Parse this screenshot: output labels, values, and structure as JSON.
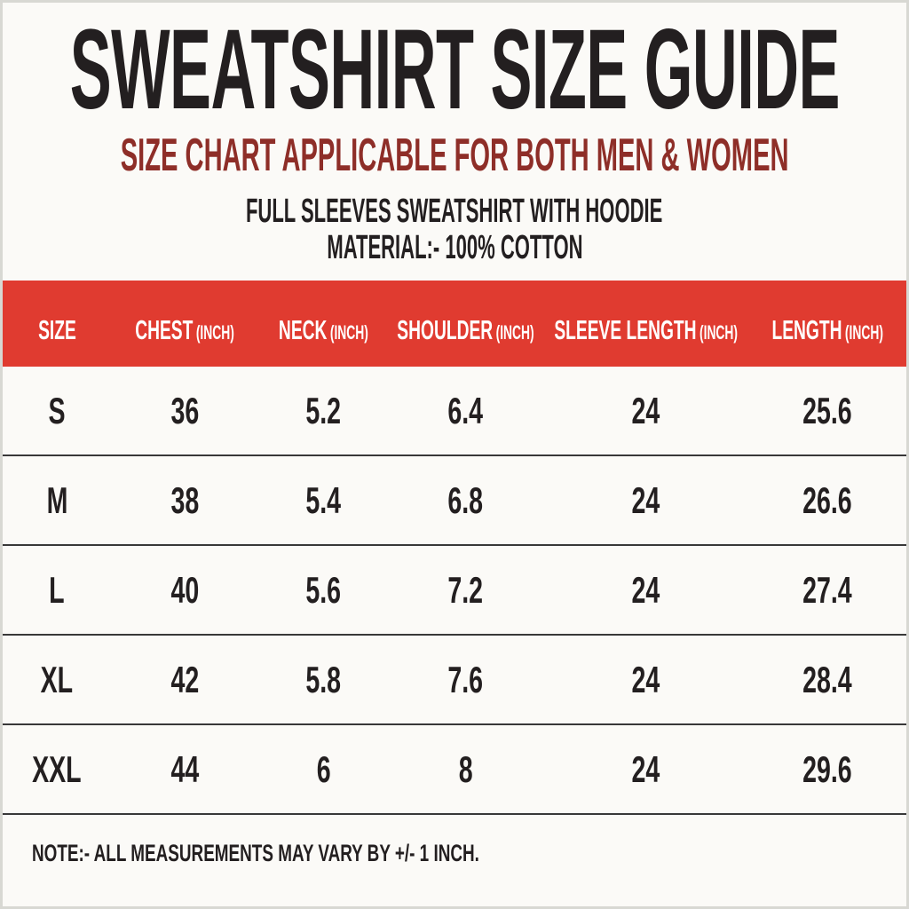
{
  "header": {
    "title": "SWEATSHIRT SIZE GUIDE",
    "subtitle": "SIZE CHART APPLICABLE FOR BOTH MEN & WOMEN",
    "product_line": "FULL SLEEVES SWEATSHIRT WITH HOODIE",
    "material_line": "MATERIAL:- 100% COTTON"
  },
  "table": {
    "columns": [
      {
        "label": "SIZE",
        "unit": ""
      },
      {
        "label": "CHEST",
        "unit": "(INCH)"
      },
      {
        "label": "NECK",
        "unit": "(INCH)"
      },
      {
        "label": "SHOULDER",
        "unit": "(INCH)"
      },
      {
        "label": "SLEEVE LENGTH",
        "unit": "(INCH)"
      },
      {
        "label": "LENGTH",
        "unit": "(INCH)"
      }
    ],
    "rows": [
      {
        "size": "S",
        "chest": "36",
        "neck": "5.2",
        "shoulder": "6.4",
        "sleeve_length": "24",
        "length": "25.6"
      },
      {
        "size": "M",
        "chest": "38",
        "neck": "5.4",
        "shoulder": "6.8",
        "sleeve_length": "24",
        "length": "26.6"
      },
      {
        "size": "L",
        "chest": "40",
        "neck": "5.6",
        "shoulder": "7.2",
        "sleeve_length": "24",
        "length": "27.4"
      },
      {
        "size": "XL",
        "chest": "42",
        "neck": "5.8",
        "shoulder": "7.6",
        "sleeve_length": "24",
        "length": "28.4"
      },
      {
        "size": "XXL",
        "chest": "44",
        "neck": "6",
        "shoulder": "8",
        "sleeve_length": "24",
        "length": "29.6"
      }
    ]
  },
  "footer": {
    "note": "NOTE:- ALL MEASUREMENTS MAY VARY BY +/- 1 INCH."
  },
  "colors": {
    "table_header_red": "#E03B30",
    "subtitle_red": "#8E2E28",
    "text_black": "#231F20",
    "background": "#FBFAF7",
    "row_divider": "#383838",
    "header_text": "#FFFFFF"
  }
}
